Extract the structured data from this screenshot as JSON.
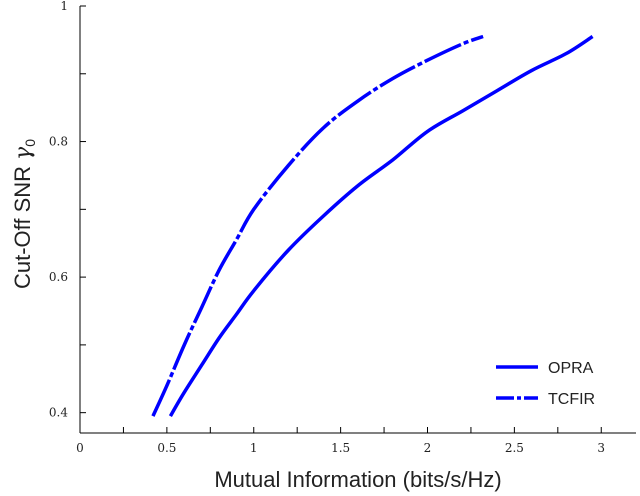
{
  "chart_data": {
    "type": "line",
    "xlabel": "Mutual Information (bits/s/Hz)",
    "ylabel": "Cut-Off SNR",
    "ylabel_symbol": "γ",
    "ylabel_subscript": "0",
    "xlim": [
      0,
      3.2
    ],
    "ylim": [
      0.37,
      1.0
    ],
    "x_ticks": [
      0,
      0.5,
      1,
      1.5,
      2,
      2.5,
      3
    ],
    "x_tick_labels": [
      "0",
      "0.5",
      "1",
      "1.5",
      "2",
      "2.5",
      "3"
    ],
    "y_ticks": [
      0.4,
      0.6,
      0.8,
      1.0
    ],
    "y_tick_labels": [
      "0.4",
      "0.6",
      "0.8",
      "1"
    ],
    "grid": false,
    "legend_position": "bottom-right",
    "series": [
      {
        "name": "OPRA",
        "style": "solid",
        "color": "#0000ff",
        "x": [
          0.52,
          0.6,
          0.7,
          0.8,
          0.9,
          1.0,
          1.2,
          1.4,
          1.6,
          1.8,
          2.0,
          2.2,
          2.4,
          2.6,
          2.8,
          2.95
        ],
        "y": [
          0.395,
          0.43,
          0.47,
          0.51,
          0.545,
          0.58,
          0.64,
          0.69,
          0.735,
          0.773,
          0.815,
          0.845,
          0.875,
          0.905,
          0.93,
          0.955
        ]
      },
      {
        "name": "TCFIR",
        "style": "dash-dot",
        "color": "#0000ff",
        "x": [
          0.42,
          0.5,
          0.6,
          0.7,
          0.8,
          0.9,
          1.0,
          1.2,
          1.4,
          1.6,
          1.8,
          2.0,
          2.2,
          2.32
        ],
        "y": [
          0.395,
          0.44,
          0.5,
          0.555,
          0.61,
          0.655,
          0.7,
          0.765,
          0.82,
          0.86,
          0.893,
          0.92,
          0.944,
          0.955
        ]
      }
    ]
  }
}
